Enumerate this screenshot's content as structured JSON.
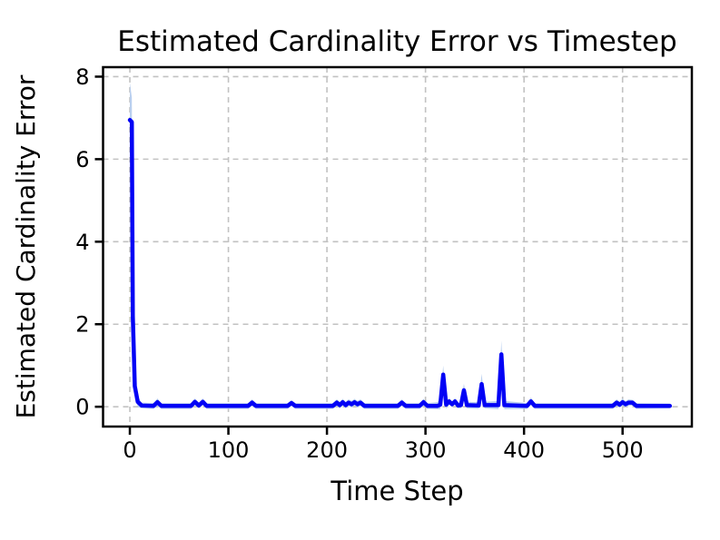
{
  "chart_data": {
    "type": "line",
    "title": "Estimated Cardinality Error vs Timestep",
    "xlabel": "Time Step",
    "ylabel": "Estimated Cardinality Error",
    "xlim": [
      -27.2,
      570.3
    ],
    "ylim": [
      -0.48,
      8.23
    ],
    "xticks": [
      0,
      100,
      200,
      300,
      400,
      500
    ],
    "yticks": [
      0,
      2,
      4,
      6,
      8
    ],
    "grid": true,
    "legend": null,
    "colors": {
      "line": "#0202f5",
      "band": "#b9cfef",
      "grid": "#c2c2c2",
      "spine": "#000000"
    },
    "series": [
      {
        "name": "estimated-cardinality-error",
        "x": [
          0,
          2,
          3,
          5,
          8,
          12,
          24,
          28,
          32,
          62,
          66,
          70,
          74,
          78,
          120,
          124,
          128,
          160,
          164,
          168,
          206,
          210,
          213,
          216,
          219,
          222,
          225,
          228,
          231,
          234,
          238,
          272,
          276,
          280,
          294,
          298,
          302,
          312,
          315,
          318,
          321,
          324,
          327,
          330,
          333,
          336,
          339,
          342,
          354,
          357,
          360,
          374,
          377,
          380,
          403,
          407,
          411,
          490,
          494,
          497,
          500,
          503,
          506,
          510,
          514,
          548
        ],
        "y": [
          6.95,
          6.9,
          2.2,
          0.5,
          0.12,
          0.03,
          0.02,
          0.11,
          0.02,
          0.02,
          0.12,
          0.03,
          0.12,
          0.02,
          0.02,
          0.1,
          0.02,
          0.02,
          0.09,
          0.02,
          0.02,
          0.1,
          0.04,
          0.11,
          0.04,
          0.1,
          0.06,
          0.11,
          0.06,
          0.1,
          0.02,
          0.02,
          0.1,
          0.02,
          0.02,
          0.11,
          0.02,
          0.02,
          0.05,
          0.78,
          0.05,
          0.13,
          0.06,
          0.13,
          0.03,
          0.04,
          0.4,
          0.04,
          0.03,
          0.55,
          0.04,
          0.04,
          1.27,
          0.04,
          0.02,
          0.13,
          0.02,
          0.02,
          0.1,
          0.05,
          0.11,
          0.06,
          0.1,
          0.1,
          0.02,
          0.02
        ],
        "upper": [
          7.85,
          7.5,
          2.6,
          0.68,
          0.25,
          0.1,
          0.09,
          0.2,
          0.09,
          0.09,
          0.2,
          0.1,
          0.2,
          0.09,
          0.09,
          0.18,
          0.09,
          0.09,
          0.16,
          0.09,
          0.09,
          0.18,
          0.12,
          0.19,
          0.12,
          0.18,
          0.14,
          0.19,
          0.14,
          0.18,
          0.09,
          0.09,
          0.18,
          0.09,
          0.09,
          0.19,
          0.09,
          0.11,
          0.2,
          1.0,
          0.15,
          0.21,
          0.13,
          0.21,
          0.1,
          0.12,
          0.56,
          0.12,
          0.11,
          0.8,
          0.12,
          0.14,
          1.6,
          0.14,
          0.09,
          0.22,
          0.09,
          0.09,
          0.18,
          0.12,
          0.2,
          0.13,
          0.18,
          0.17,
          0.09,
          0.08
        ]
      }
    ]
  }
}
